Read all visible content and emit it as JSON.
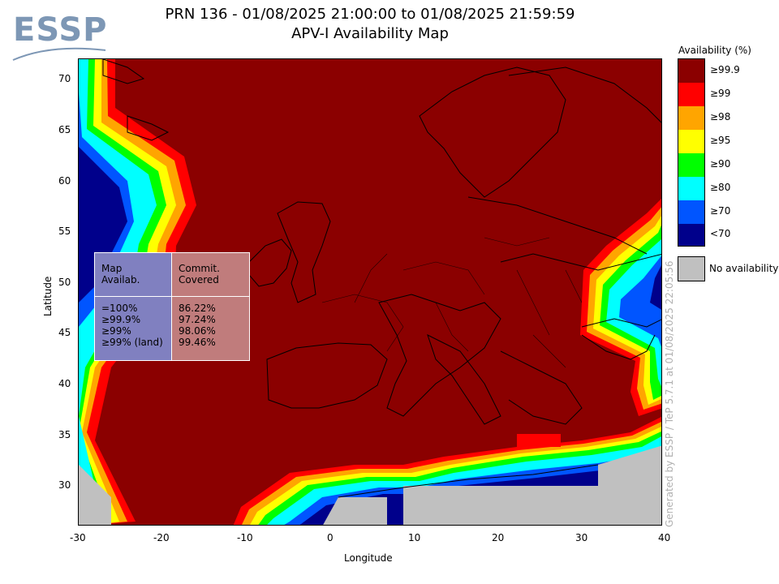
{
  "header": {
    "title_line1": "PRN 136 - 01/08/2025 21:00:00 to 01/08/2025 21:59:59",
    "title_line2": "APV-I Availability Map",
    "logo_text": "ESSP"
  },
  "axes": {
    "xlabel": "Longitude",
    "ylabel": "Latitude",
    "x_ticks": [
      "-30",
      "-20",
      "-10",
      "0",
      "10",
      "20",
      "30",
      "40"
    ],
    "y_ticks": [
      "70",
      "65",
      "60",
      "55",
      "50",
      "45",
      "40",
      "35",
      "30"
    ],
    "xlim": [
      -30,
      40
    ],
    "ylim": [
      26,
      72
    ]
  },
  "legend": {
    "title": "Availability (%)",
    "items": [
      {
        "label": "≥99.9",
        "color": "#8b0000"
      },
      {
        "label": "≥99",
        "color": "#ff0000"
      },
      {
        "label": "≥98",
        "color": "#ffa500"
      },
      {
        "label": "≥95",
        "color": "#ffff00"
      },
      {
        "label": "≥90",
        "color": "#00ff00"
      },
      {
        "label": "≥80",
        "color": "#00ffff"
      },
      {
        "label": "≥70",
        "color": "#0055ff"
      },
      {
        "label": "<70",
        "color": "#00008b"
      }
    ],
    "no_availability_label": "No availability",
    "no_availability_color": "#c0c0c0"
  },
  "stats_table": {
    "header_left": [
      "Map",
      "Availab."
    ],
    "header_right": [
      "Commit.",
      "Covered"
    ],
    "rows": [
      {
        "label": "=100%",
        "value": "86.22%"
      },
      {
        "label": "≥99.9%",
        "value": "97.24%"
      },
      {
        "label": "≥99%",
        "value": "98.06%"
      },
      {
        "label": "≥99% (land)",
        "value": "99.46%"
      }
    ]
  },
  "generated_text": "Generated by ESSP / TeP 5.7.1 at 01/08/2025 22:05:56"
}
